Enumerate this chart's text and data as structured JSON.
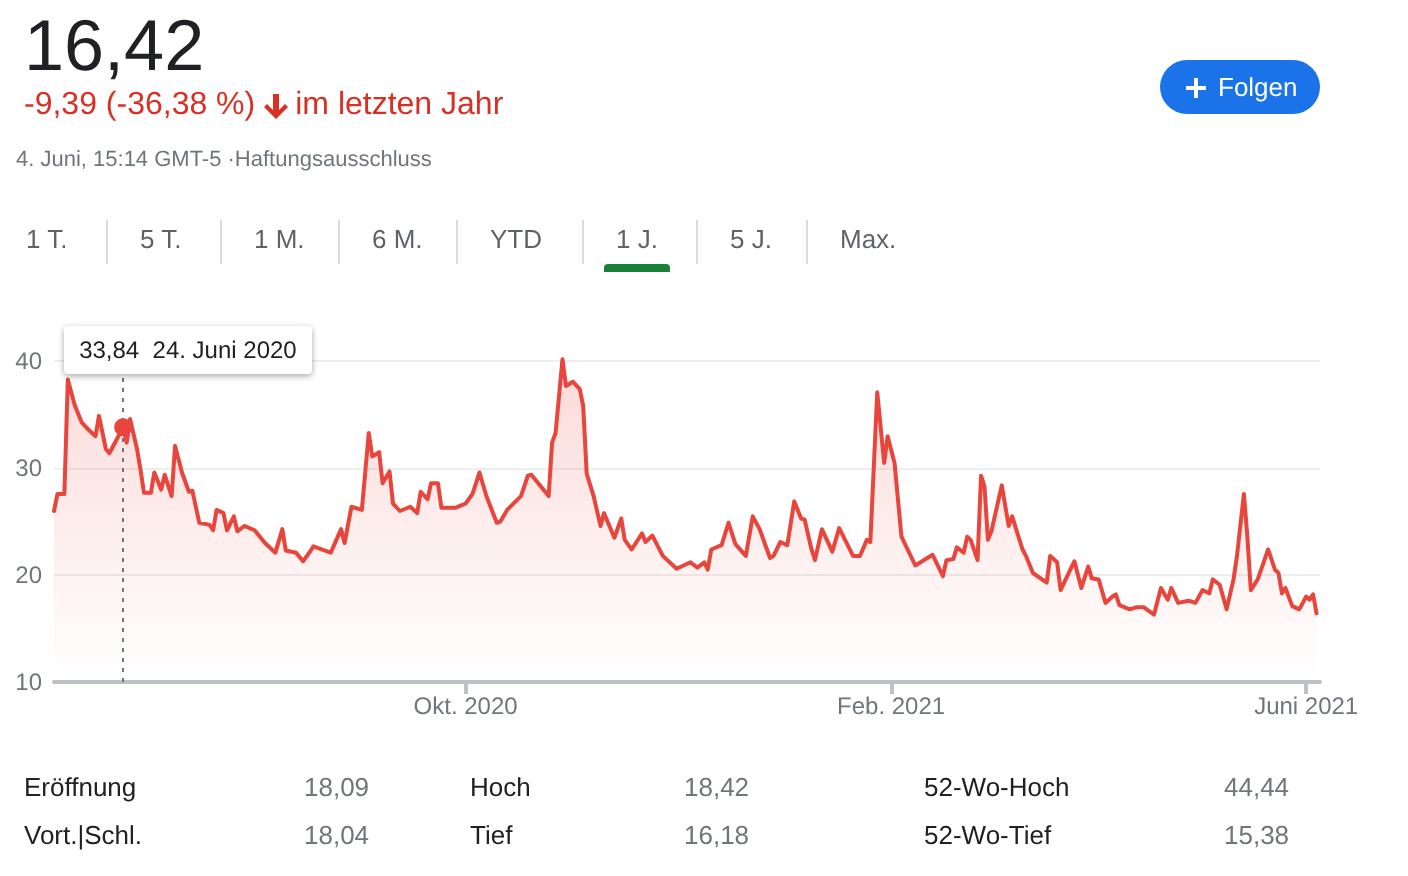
{
  "chart_data": {
    "type": "area",
    "title": "16,42",
    "subtitle": "-9,39 (-36,38 %)",
    "color": "#e8453c",
    "grid": "y",
    "xlim": [
      "2020-06-04",
      "2021-06-05"
    ],
    "ylim": [
      10,
      42
    ],
    "xticks": [
      {
        "value": "2020-10-01",
        "label": "Okt. 2020"
      },
      {
        "value": "2021-02-01",
        "label": "Feb. 2021"
      },
      {
        "value": "2021-06-01",
        "label": "Juni 2021"
      }
    ],
    "yticks": [
      10,
      20,
      30,
      40
    ],
    "ref_lines": [
      {
        "axis": "x",
        "value": "2020-06-24",
        "color": "#70757a",
        "line_style": "dotted"
      }
    ],
    "annotations": [
      "im letzten Jahr",
      "4. Juni, 15:14 GMT-5 ·Haftungsausschluss",
      "Folgen",
      "1 T.",
      "5 T.",
      "1 M.",
      "6 M.",
      "YTD",
      "1 J.",
      "5 J.",
      "Max.",
      "Eröffnung",
      "18,09",
      "Hoch",
      "18,42",
      "52-Wo-Hoch",
      "44,44",
      "Vort.|Schl.",
      "18,04",
      "Tief",
      "16,18",
      "52-Wo-Tief",
      "15,38",
      {
        "text": "33,84  24. Juni 2020",
        "x": "2020-06-24",
        "y": 33.84
      }
    ],
    "x": [
      "2020-06-04",
      "2020-06-05",
      "2020-06-07",
      "2020-06-08",
      "2020-06-10",
      "2020-06-12",
      "2020-06-14",
      "2020-06-16",
      "2020-06-17",
      "2020-06-19",
      "2020-06-20",
      "2020-06-24",
      "2020-06-25",
      "2020-06-26",
      "2020-06-28",
      "2020-06-29",
      "2020-06-30",
      "2020-07-02",
      "2020-07-03",
      "2020-07-05",
      "2020-07-06",
      "2020-07-08",
      "2020-07-09",
      "2020-07-11",
      "2020-07-13",
      "2020-07-14",
      "2020-07-16",
      "2020-07-19",
      "2020-07-20",
      "2020-07-21",
      "2020-07-23",
      "2020-07-24",
      "2020-07-26",
      "2020-07-27",
      "2020-07-29",
      "2020-08-01",
      "2020-08-04",
      "2020-08-07",
      "2020-08-09",
      "2020-08-10",
      "2020-08-13",
      "2020-08-15",
      "2020-08-17",
      "2020-08-18",
      "2020-08-23",
      "2020-08-26",
      "2020-08-27",
      "2020-08-29",
      "2020-09-01",
      "2020-09-03",
      "2020-09-04",
      "2020-09-06",
      "2020-09-07",
      "2020-09-09",
      "2020-09-10",
      "2020-09-12",
      "2020-09-15",
      "2020-09-17",
      "2020-09-18",
      "2020-09-20",
      "2020-09-21",
      "2020-09-23",
      "2020-09-24",
      "2020-09-28",
      "2020-10-01",
      "2020-10-03",
      "2020-10-05",
      "2020-10-07",
      "2020-10-10",
      "2020-10-11",
      "2020-10-13",
      "2020-10-17",
      "2020-10-19",
      "2020-10-20",
      "2020-10-25",
      "2020-10-26",
      "2020-10-27",
      "2020-10-29",
      "2020-10-30",
      "2020-11-01",
      "2020-11-03",
      "2020-11-04",
      "2020-11-05",
      "2020-11-07",
      "2020-11-09",
      "2020-11-10",
      "2020-11-13",
      "2020-11-15",
      "2020-11-16",
      "2020-11-18",
      "2020-11-21",
      "2020-11-22",
      "2020-11-24",
      "2020-11-27",
      "2020-12-01",
      "2020-12-05",
      "2020-12-07",
      "2020-12-09",
      "2020-12-10",
      "2020-12-11",
      "2020-12-14",
      "2020-12-16",
      "2020-12-18",
      "2020-12-21",
      "2020-12-23",
      "2020-12-25",
      "2020-12-28",
      "2020-12-29",
      "2020-12-31",
      "2021-01-02",
      "2021-01-04",
      "2021-01-06",
      "2021-01-07",
      "2021-01-09",
      "2021-01-10",
      "2021-01-12",
      "2021-01-15",
      "2021-01-17",
      "2021-01-21",
      "2021-01-23",
      "2021-01-25",
      "2021-01-26",
      "2021-01-28",
      "2021-01-30",
      "2021-01-31",
      "2021-02-02",
      "2021-02-04",
      "2021-02-08",
      "2021-02-13",
      "2021-02-16",
      "2021-02-17",
      "2021-02-19",
      "2021-02-20",
      "2021-02-22",
      "2021-02-23",
      "2021-02-24",
      "2021-02-26",
      "2021-02-27",
      "2021-02-28",
      "2021-03-01",
      "2021-03-02",
      "2021-03-05",
      "2021-03-07",
      "2021-03-08",
      "2021-03-11",
      "2021-03-12",
      "2021-03-14",
      "2021-03-18",
      "2021-03-19",
      "2021-03-21",
      "2021-03-22",
      "2021-03-26",
      "2021-03-28",
      "2021-03-30",
      "2021-03-31",
      "2021-04-02",
      "2021-04-04",
      "2021-04-06",
      "2021-04-07",
      "2021-04-08",
      "2021-04-11",
      "2021-04-13",
      "2021-04-15",
      "2021-04-18",
      "2021-04-20",
      "2021-04-22",
      "2021-04-23",
      "2021-04-25",
      "2021-04-28",
      "2021-04-30",
      "2021-05-02",
      "2021-05-04",
      "2021-05-05",
      "2021-05-07",
      "2021-05-09",
      "2021-05-11",
      "2021-05-12",
      "2021-05-14",
      "2021-05-15",
      "2021-05-16",
      "2021-05-18",
      "2021-05-21",
      "2021-05-23",
      "2021-05-24",
      "2021-05-25",
      "2021-05-26",
      "2021-05-28",
      "2021-05-30",
      "2021-06-01",
      "2021-06-02",
      "2021-06-03",
      "2021-06-04"
    ],
    "values": [
      26.0,
      27.6,
      27.6,
      38.3,
      35.9,
      34.3,
      33.6,
      33.0,
      34.9,
      31.8,
      31.4,
      33.84,
      32.4,
      34.6,
      31.8,
      29.9,
      27.7,
      27.7,
      29.6,
      28.0,
      29.4,
      27.4,
      32.1,
      29.6,
      27.8,
      27.9,
      24.9,
      24.7,
      24.2,
      26.1,
      25.8,
      24.2,
      25.5,
      24.1,
      24.6,
      24.2,
      23.0,
      22.1,
      24.3,
      22.3,
      22.1,
      21.3,
      22.2,
      22.7,
      22.1,
      24.3,
      23.0,
      26.4,
      26.1,
      33.3,
      31.1,
      31.5,
      28.6,
      29.7,
      26.7,
      26.0,
      26.4,
      25.8,
      27.8,
      27.1,
      28.6,
      28.6,
      26.3,
      26.3,
      26.7,
      27.6,
      29.6,
      27.4,
      24.9,
      25.0,
      26.1,
      27.4,
      29.3,
      29.4,
      27.4,
      32.4,
      33.3,
      40.2,
      37.7,
      38.1,
      37.4,
      35.8,
      29.5,
      27.4,
      24.6,
      25.8,
      23.5,
      25.3,
      23.3,
      22.4,
      23.9,
      23.1,
      23.7,
      21.8,
      20.6,
      21.2,
      20.7,
      21.2,
      20.5,
      22.4,
      22.8,
      24.9,
      22.9,
      21.8,
      25.5,
      24.3,
      21.6,
      21.8,
      23.1,
      22.8,
      26.9,
      25.3,
      25.2,
      22.4,
      21.4,
      24.3,
      22.2,
      24.4,
      21.8,
      21.8,
      23.3,
      23.1,
      37.1,
      30.5,
      33.0,
      30.5,
      23.6,
      20.9,
      21.9,
      19.9,
      21.4,
      21.5,
      22.6,
      22.1,
      23.6,
      23.3,
      21.4,
      29.3,
      28.3,
      23.3,
      24.1,
      28.4,
      24.6,
      25.5,
      22.4,
      21.8,
      20.2,
      19.3,
      21.8,
      21.2,
      18.6,
      21.3,
      18.8,
      20.8,
      19.7,
      19.6,
      17.4,
      18.0,
      18.2,
      17.2,
      16.8,
      17.0,
      17.0,
      16.3,
      18.8,
      17.7,
      18.8,
      17.4,
      17.6,
      17.4,
      18.6,
      18.3,
      19.6,
      19.1,
      16.8,
      19.6,
      21.8,
      27.6,
      23.6,
      18.6,
      19.6,
      22.4,
      20.5,
      20.2,
      18.3,
      18.8,
      17.1,
      16.8,
      18.0,
      17.7,
      18.2,
      16.42
    ]
  }
}
